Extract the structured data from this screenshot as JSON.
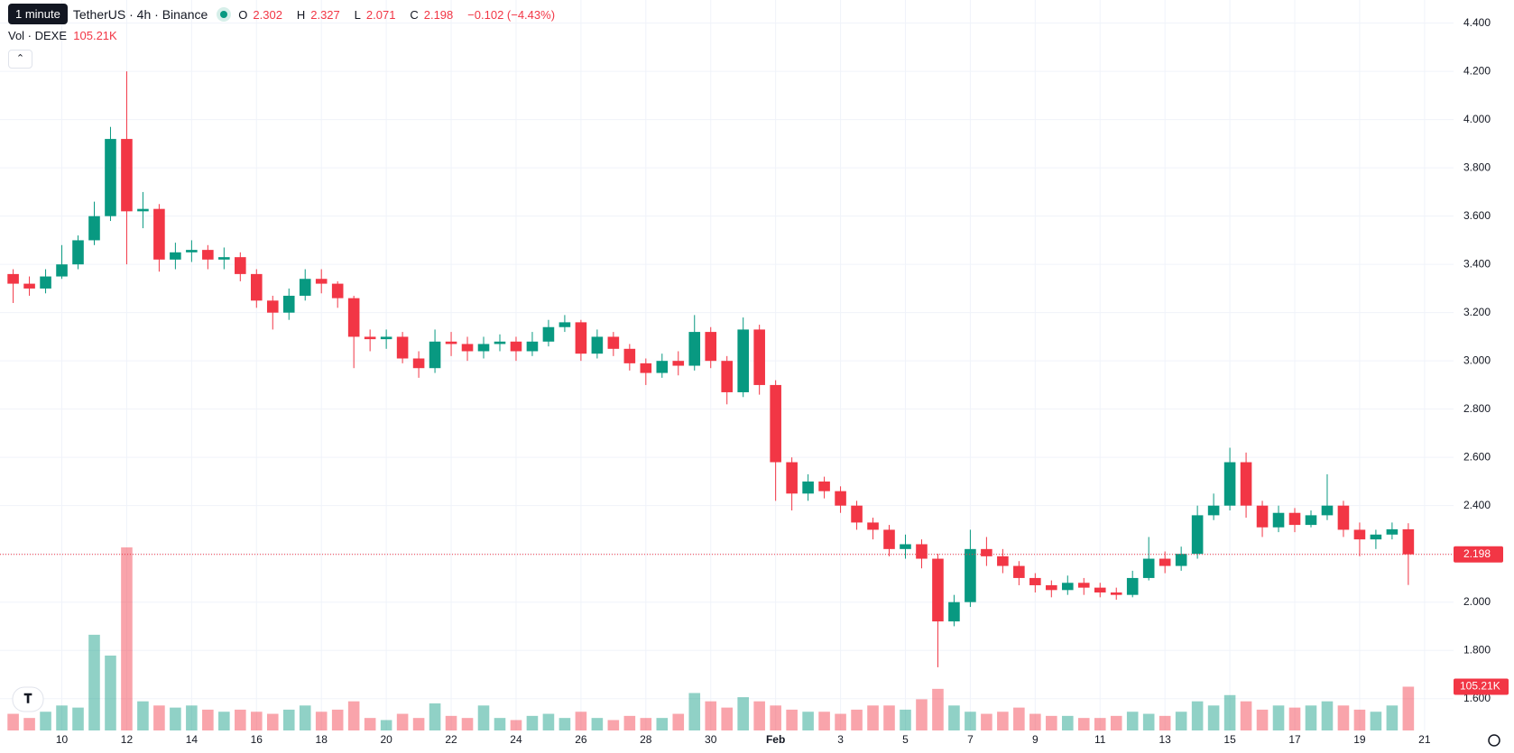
{
  "ui": {
    "tooltip": "1 minute",
    "symbol": "TetherUS · 4h · Binance",
    "ohlc_labels": [
      "O",
      "H",
      "L",
      "C"
    ],
    "change": "−0.102 (−4.43%)"
  },
  "chart_data": {
    "type": "candlestick",
    "up_color": "#089981",
    "down_color": "#f23645",
    "grid": true,
    "categories": [
      null,
      null,
      null,
      "10",
      null,
      null,
      null,
      "12",
      null,
      null,
      null,
      "14",
      null,
      null,
      null,
      "16",
      null,
      null,
      null,
      "18",
      null,
      null,
      null,
      "20",
      null,
      null,
      null,
      "22",
      null,
      null,
      null,
      "24",
      null,
      null,
      null,
      "26",
      null,
      null,
      null,
      "28",
      null,
      null,
      null,
      "30",
      null,
      null,
      null,
      "Feb",
      null,
      null,
      null,
      "3",
      null,
      null,
      null,
      "5",
      null,
      null,
      null,
      "7",
      null,
      null,
      null,
      "9",
      null,
      null,
      null,
      "11",
      null,
      null,
      null,
      "13",
      null,
      null,
      null,
      "15",
      null,
      null,
      null,
      "17",
      null,
      null,
      null,
      "19",
      null,
      null,
      null,
      "21"
    ],
    "open": [
      3.36,
      3.32,
      3.3,
      3.35,
      3.4,
      3.5,
      3.6,
      3.92,
      3.62,
      3.63,
      3.42,
      3.45,
      3.46,
      3.42,
      3.43,
      3.36,
      3.25,
      3.2,
      3.27,
      3.34,
      3.32,
      3.26,
      3.1,
      3.09,
      3.1,
      3.01,
      2.97,
      3.08,
      3.07,
      3.04,
      3.07,
      3.08,
      3.04,
      3.08,
      3.14,
      3.16,
      3.03,
      3.1,
      3.05,
      2.99,
      2.95,
      3.0,
      2.98,
      3.12,
      3.0,
      2.87,
      3.13,
      2.9,
      2.58,
      2.45,
      2.5,
      2.46,
      2.4,
      2.33,
      2.3,
      2.22,
      2.24,
      2.18,
      1.92,
      2.0,
      2.22,
      2.19,
      2.15,
      2.1,
      2.07,
      2.05,
      2.08,
      2.06,
      2.04,
      2.03,
      2.1,
      2.18,
      2.15,
      2.2,
      2.36,
      2.4,
      2.58,
      2.4,
      2.31,
      2.37,
      2.32,
      2.36,
      2.4,
      2.3,
      2.26,
      2.28,
      2.302,
      null
    ],
    "high": [
      3.38,
      3.35,
      3.38,
      3.48,
      3.52,
      3.66,
      3.97,
      4.2,
      3.7,
      3.65,
      3.49,
      3.5,
      3.48,
      3.47,
      3.45,
      3.38,
      3.27,
      3.3,
      3.38,
      3.38,
      3.33,
      3.27,
      3.13,
      3.13,
      3.12,
      3.04,
      3.13,
      3.12,
      3.1,
      3.1,
      3.11,
      3.1,
      3.12,
      3.17,
      3.19,
      3.17,
      3.13,
      3.12,
      3.07,
      3.01,
      3.03,
      3.04,
      3.19,
      3.14,
      3.02,
      3.18,
      3.15,
      2.92,
      2.6,
      2.53,
      2.52,
      2.48,
      2.42,
      2.35,
      2.32,
      2.28,
      2.26,
      2.2,
      2.03,
      2.3,
      2.27,
      2.22,
      2.17,
      2.12,
      2.09,
      2.11,
      2.1,
      2.08,
      2.06,
      2.13,
      2.27,
      2.21,
      2.23,
      2.4,
      2.45,
      2.64,
      2.62,
      2.42,
      2.4,
      2.39,
      2.38,
      2.53,
      2.42,
      2.33,
      2.3,
      2.33,
      2.327,
      null
    ],
    "low": [
      3.24,
      3.27,
      3.28,
      3.34,
      3.38,
      3.48,
      3.58,
      3.4,
      3.55,
      3.37,
      3.38,
      3.41,
      3.38,
      3.38,
      3.33,
      3.22,
      3.13,
      3.17,
      3.25,
      3.28,
      3.22,
      2.97,
      3.04,
      3.05,
      2.99,
      2.93,
      2.95,
      3.02,
      3.0,
      3.01,
      3.04,
      3.0,
      3.02,
      3.06,
      3.12,
      3.0,
      3.01,
      3.02,
      2.96,
      2.9,
      2.93,
      2.94,
      2.96,
      2.97,
      2.82,
      2.85,
      2.86,
      2.42,
      2.38,
      2.42,
      2.43,
      2.37,
      2.3,
      2.26,
      2.19,
      2.18,
      2.14,
      1.73,
      1.9,
      1.98,
      2.15,
      2.12,
      2.07,
      2.04,
      2.02,
      2.03,
      2.03,
      2.02,
      2.01,
      2.02,
      2.09,
      2.12,
      2.13,
      2.18,
      2.34,
      2.38,
      2.35,
      2.27,
      2.29,
      2.29,
      2.31,
      2.34,
      2.27,
      2.19,
      2.22,
      2.26,
      2.071,
      null
    ],
    "close": [
      3.32,
      3.3,
      3.35,
      3.4,
      3.5,
      3.6,
      3.92,
      3.62,
      3.63,
      3.42,
      3.45,
      3.46,
      3.42,
      3.43,
      3.36,
      3.25,
      3.2,
      3.27,
      3.34,
      3.32,
      3.26,
      3.1,
      3.09,
      3.1,
      3.01,
      2.97,
      3.08,
      3.07,
      3.04,
      3.07,
      3.08,
      3.04,
      3.08,
      3.14,
      3.16,
      3.03,
      3.1,
      3.05,
      2.99,
      2.95,
      3.0,
      2.98,
      3.12,
      3.0,
      2.87,
      3.13,
      2.9,
      2.58,
      2.45,
      2.5,
      2.46,
      2.4,
      2.33,
      2.3,
      2.22,
      2.24,
      2.18,
      1.92,
      2.0,
      2.22,
      2.19,
      2.15,
      2.1,
      2.07,
      2.05,
      2.08,
      2.06,
      2.04,
      2.03,
      2.1,
      2.18,
      2.15,
      2.2,
      2.36,
      2.4,
      2.58,
      2.4,
      2.31,
      2.37,
      2.32,
      2.36,
      2.4,
      2.3,
      2.26,
      2.28,
      2.302,
      2.198,
      null
    ],
    "volume": {
      "name": "Vol · DEXE",
      "values": [
        40000,
        30000,
        45000,
        60000,
        55000,
        230000,
        180000,
        440000,
        70000,
        60000,
        55000,
        60000,
        50000,
        45000,
        50000,
        45000,
        40000,
        50000,
        60000,
        45000,
        50000,
        70000,
        30000,
        25000,
        40000,
        30000,
        65000,
        35000,
        30000,
        60000,
        30000,
        25000,
        35000,
        40000,
        30000,
        45000,
        30000,
        25000,
        35000,
        30000,
        30000,
        40000,
        90000,
        70000,
        55000,
        80000,
        70000,
        60000,
        50000,
        45000,
        45000,
        40000,
        50000,
        60000,
        60000,
        50000,
        75000,
        100000,
        60000,
        45000,
        40000,
        45000,
        55000,
        40000,
        35000,
        35000,
        30000,
        30000,
        35000,
        45000,
        40000,
        35000,
        45000,
        70000,
        60000,
        85000,
        70000,
        50000,
        60000,
        55000,
        60000,
        70000,
        60000,
        50000,
        45000,
        60000,
        105210,
        null
      ],
      "value_labels": [
        null,
        null,
        null,
        null,
        null,
        null,
        null,
        null,
        null,
        null,
        null,
        null,
        null,
        null,
        null,
        null,
        null,
        null,
        null,
        null,
        null,
        null,
        null,
        null,
        null,
        null,
        null,
        null,
        null,
        null,
        null,
        null,
        null,
        null,
        null,
        null,
        null,
        null,
        null,
        null,
        null,
        null,
        null,
        null,
        null,
        null,
        null,
        null,
        null,
        null,
        null,
        null,
        null,
        null,
        null,
        null,
        null,
        null,
        null,
        null,
        null,
        null,
        null,
        null,
        null,
        null,
        null,
        null,
        null,
        null,
        null,
        null,
        null,
        null,
        null,
        null,
        null,
        null,
        null,
        null,
        null,
        null,
        null,
        null,
        null,
        null,
        "105.21K",
        null
      ]
    },
    "ylim": [
      1.468,
      4.496
    ],
    "yticks": [
      {
        "value": 1.6,
        "label": "1.600"
      },
      {
        "value": 1.8,
        "label": "1.800"
      },
      {
        "value": 2.0,
        "label": "2.000"
      },
      {
        "value": 2.2,
        "label": "2.200"
      },
      {
        "value": 2.4,
        "label": "2.400"
      },
      {
        "value": 2.6,
        "label": "2.600"
      },
      {
        "value": 2.8,
        "label": "2.800"
      },
      {
        "value": 3.0,
        "label": "3.000"
      },
      {
        "value": 3.2,
        "label": "3.200"
      },
      {
        "value": 3.4,
        "label": "3.400"
      },
      {
        "value": 3.6,
        "label": "3.600"
      },
      {
        "value": 3.8,
        "label": "3.800"
      },
      {
        "value": 4.0,
        "label": "4.000"
      },
      {
        "value": 4.2,
        "label": "4.200"
      },
      {
        "value": 4.4,
        "label": "4.400"
      }
    ]
  }
}
